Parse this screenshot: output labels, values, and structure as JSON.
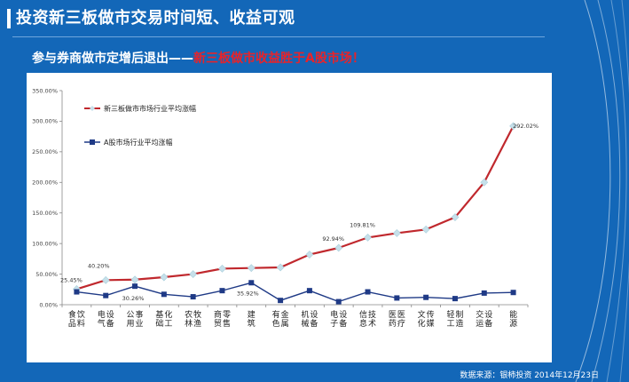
{
  "slide": {
    "title": "投资新三板做市交易时间短、收益可观",
    "subtitle_prefix": "参与券商做市定增后退出——",
    "subtitle_highlight": "新三板做市收益胜于A股市场！",
    "source": "数据来源：银柿投资  2014年12月23日"
  },
  "colors": {
    "background": "#1367b8",
    "series_sanban": "#c0282d",
    "series_a_share": "#1f3a86",
    "highlight_text": "#e8232a"
  },
  "chart_data": {
    "type": "line",
    "categories": [
      "食品饮料",
      "电气设备",
      "公用事业",
      "基础化工",
      "农林牧渔",
      "商贸零售",
      "建筑",
      "有色金属",
      "机械设备",
      "电子设备",
      "信息技术",
      "医药医疗",
      "文化传媒",
      "轻工制造",
      "交运设备",
      "能源"
    ],
    "series": [
      {
        "name": "新三板做市市场行业平均涨幅",
        "values": [
          25.45,
          40.2,
          41,
          45,
          50,
          59,
          60,
          61,
          82,
          92.94,
          109.81,
          117,
          123,
          143,
          200,
          292.02
        ]
      },
      {
        "name": "A股市场行业平均涨幅",
        "values": [
          21,
          15,
          30.26,
          17,
          13,
          23,
          35.92,
          7,
          23,
          5,
          21,
          11,
          12,
          10,
          19,
          20
        ]
      }
    ],
    "data_labels": [
      {
        "series": 0,
        "index": 0,
        "text": "25.45%"
      },
      {
        "series": 0,
        "index": 1,
        "text": "40.20%"
      },
      {
        "series": 1,
        "index": 2,
        "text": "30.26%"
      },
      {
        "series": 1,
        "index": 6,
        "text": "35.92%"
      },
      {
        "series": 0,
        "index": 9,
        "text": "92.94%"
      },
      {
        "series": 0,
        "index": 10,
        "text": "109.81%"
      },
      {
        "series": 0,
        "index": 15,
        "text": "292.02%"
      }
    ],
    "yticks": [
      "0.00%",
      "50.00%",
      "100.00%",
      "150.00%",
      "200.00%",
      "250.00%",
      "300.00%",
      "350.00%"
    ],
    "ylim": [
      0,
      350
    ],
    "grid": false,
    "legend_position": "top-left"
  }
}
